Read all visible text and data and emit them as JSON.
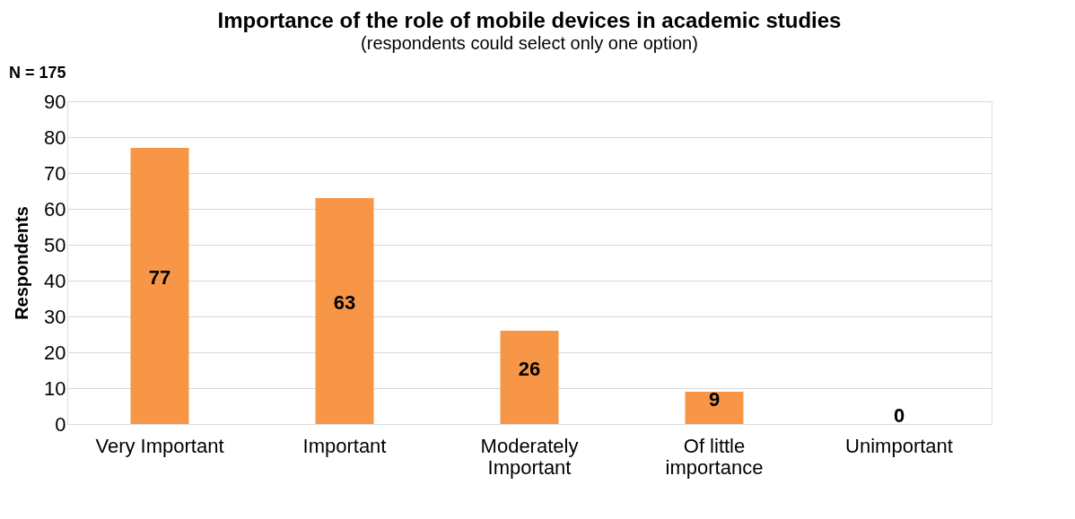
{
  "chart_data": {
    "type": "bar",
    "title": "Importance of the role of mobile devices in academic studies",
    "subtitle": "(respondents could select only one option)",
    "ylabel": "Respondents",
    "annotations": [
      "N = 175"
    ],
    "categories": [
      "Very Important",
      "Important",
      "Moderately Important",
      "Of little importance",
      "Unimportant"
    ],
    "values": [
      77,
      63,
      26,
      9,
      0
    ],
    "color": "#f79646",
    "ylim": [
      0,
      90
    ],
    "yticks": [
      0,
      10,
      20,
      30,
      40,
      50,
      60,
      70,
      80,
      90
    ],
    "grid": "y",
    "data_labels": true,
    "legend": false
  }
}
